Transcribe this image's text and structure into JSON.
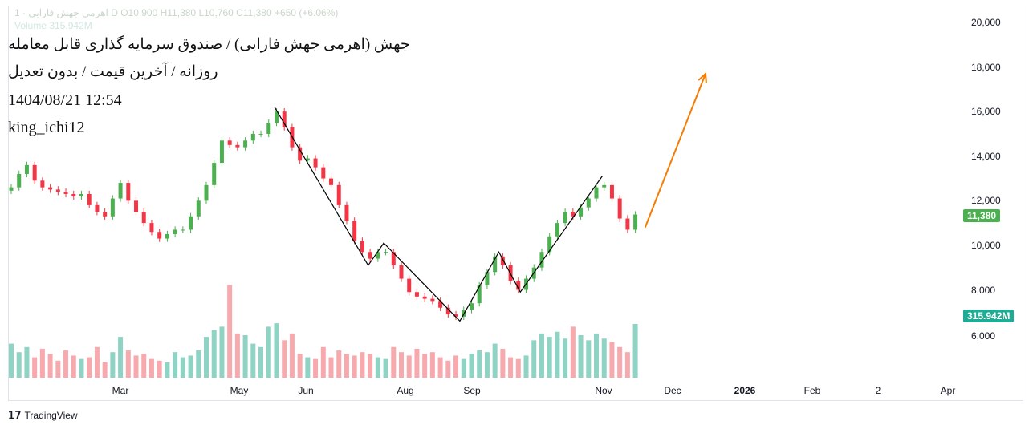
{
  "legend": {
    "interval": "1",
    "symbol": "اهرمی جهش فارابی",
    "timeframe": "D",
    "open": "O10,900",
    "high": "H11,380",
    "low": "L10,760",
    "close": "C11,380",
    "change": "+650 (+6.06%)",
    "volume_label": "Volume",
    "volume_value": "315.942M"
  },
  "overlay": {
    "title": "جهش (اهرمی جهش فارابی) / صندوق سرمایه گذاری قابل معامله",
    "subtitle": "روزانه / آخرین قیمت / بدون تعدیل",
    "datetime": "1404/08/21 12:54",
    "author": "king_ichi12"
  },
  "price_tag": "11,380",
  "volume_tag": "315.942M",
  "colors": {
    "up": "#4caf50",
    "down": "#f23645",
    "vol_up": "#8fd3c4",
    "vol_down": "#f7a9ae",
    "arrow": "#f57c00",
    "trend": "#000000",
    "vol_tag": "#22ab94"
  },
  "brand": "TradingView",
  "chart_data": {
    "type": "candlestick",
    "ylim": [
      6000,
      20000
    ],
    "y_ticks": [
      "20,000",
      "18,000",
      "16,000",
      "14,000",
      "12,000",
      "10,000",
      "8,000",
      "6,000"
    ],
    "x_ticks": [
      "Mar",
      "May",
      "Jun",
      "Aug",
      "Sep",
      "Nov",
      "Dec",
      "2026",
      "Feb",
      "2",
      "Apr"
    ],
    "start_date": "2025-01-04",
    "step_days": 4,
    "closes": [
      12600,
      13200,
      13600,
      12900,
      12600,
      12500,
      12400,
      12300,
      12200,
      12300,
      11800,
      11500,
      11300,
      12100,
      12800,
      12000,
      11500,
      11000,
      10600,
      10300,
      10500,
      10700,
      10700,
      11300,
      12000,
      12700,
      13700,
      14700,
      14500,
      14400,
      14700,
      15000,
      15000,
      15500,
      16000,
      15300,
      14400,
      13800,
      13900,
      13500,
      13000,
      12700,
      11800,
      11100,
      10200,
      9700,
      9400,
      9700,
      9700,
      9100,
      8500,
      7900,
      7700,
      7600,
      7500,
      7200,
      6900,
      6800,
      7100,
      7400,
      8200,
      8800,
      9500,
      9100,
      8400,
      8000,
      8500,
      9000,
      9700,
      10400,
      11000,
      11500,
      11300,
      11700,
      12100,
      12600,
      12700,
      12100,
      11200,
      10700,
      11380
    ],
    "volumes_m": [
      200,
      150,
      180,
      120,
      170,
      140,
      100,
      160,
      130,
      110,
      120,
      180,
      90,
      150,
      240,
      160,
      130,
      140,
      110,
      100,
      90,
      150,
      120,
      130,
      160,
      240,
      280,
      300,
      545,
      260,
      250,
      200,
      180,
      300,
      320,
      220,
      260,
      140,
      120,
      110,
      180,
      120,
      160,
      140,
      130,
      150,
      140,
      120,
      110,
      180,
      150,
      130,
      170,
      140,
      150,
      120,
      100,
      130,
      110,
      140,
      160,
      150,
      200,
      170,
      120,
      110,
      130,
      220,
      260,
      240,
      270,
      230,
      300,
      250,
      220,
      260,
      230,
      210,
      180,
      150,
      315.942
    ],
    "trend_lines": [
      {
        "date": "2025-05-19",
        "price": 16200
      },
      {
        "date": "2025-07-06",
        "price": 9100
      },
      {
        "date": "2025-07-14",
        "price": 10100
      },
      {
        "date": "2025-08-22",
        "price": 6600
      },
      {
        "date": "2025-09-11",
        "price": 9700
      },
      {
        "date": "2025-09-22",
        "price": 7900
      },
      {
        "date": "2025-11-03",
        "price": 13100
      }
    ],
    "arrow": {
      "from": {
        "date": "2025-11-25",
        "price": 10800
      },
      "to": {
        "date": "2025-12-26",
        "price": 17700
      }
    }
  }
}
